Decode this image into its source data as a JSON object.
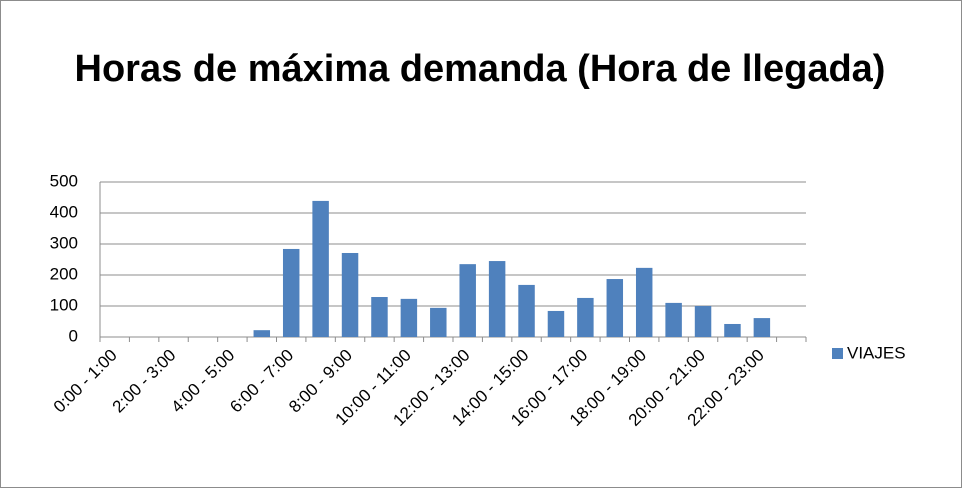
{
  "chart_data": {
    "type": "bar",
    "title": "Horas de máxima demanda (Hora de llegada)",
    "categories": [
      "0:00 - 1:00",
      null,
      "2:00 - 3:00",
      null,
      "4:00 - 5:00",
      null,
      "6:00 - 7:00",
      null,
      "8:00 - 9:00",
      null,
      "10:00 - 11:00",
      null,
      "12:00 - 13:00",
      null,
      "14:00 - 15:00",
      null,
      "16:00 - 17:00",
      null,
      "18:00 - 19:00",
      null,
      "20:00 - 21:00",
      null,
      "22:00 - 23:00",
      null
    ],
    "series": [
      {
        "name": "VIAJES",
        "color": "#4f81bd",
        "values": [
          0,
          0,
          0,
          0,
          0,
          22,
          284,
          439,
          271,
          129,
          123,
          94,
          235,
          245,
          168,
          84,
          126,
          187,
          223,
          110,
          100,
          42,
          61,
          0
        ]
      }
    ],
    "ylim": [
      0,
      500
    ],
    "yticks": [
      0,
      100,
      200,
      300,
      400,
      500
    ],
    "grid": true,
    "legend": "right"
  }
}
